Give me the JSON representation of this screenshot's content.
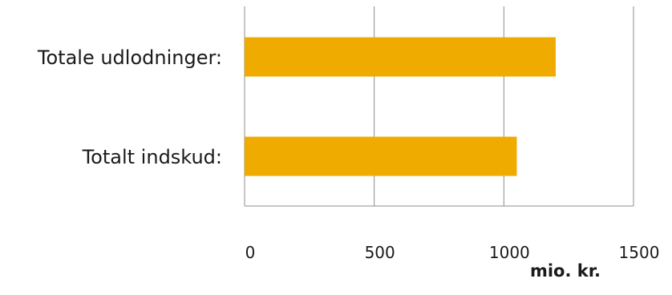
{
  "chart_data": {
    "type": "bar",
    "orientation": "horizontal",
    "categories": [
      "Totale udlodninger:",
      "Totalt indskud:"
    ],
    "values": [
      1200,
      1050
    ],
    "xlim": [
      0,
      1500
    ],
    "xticks": [
      "0",
      "500",
      "1000",
      "1500"
    ],
    "xlabel": "mio. kr.",
    "grid": true,
    "colors": {
      "bar": "#F0AB00",
      "grid": "#8c8c8c"
    }
  }
}
